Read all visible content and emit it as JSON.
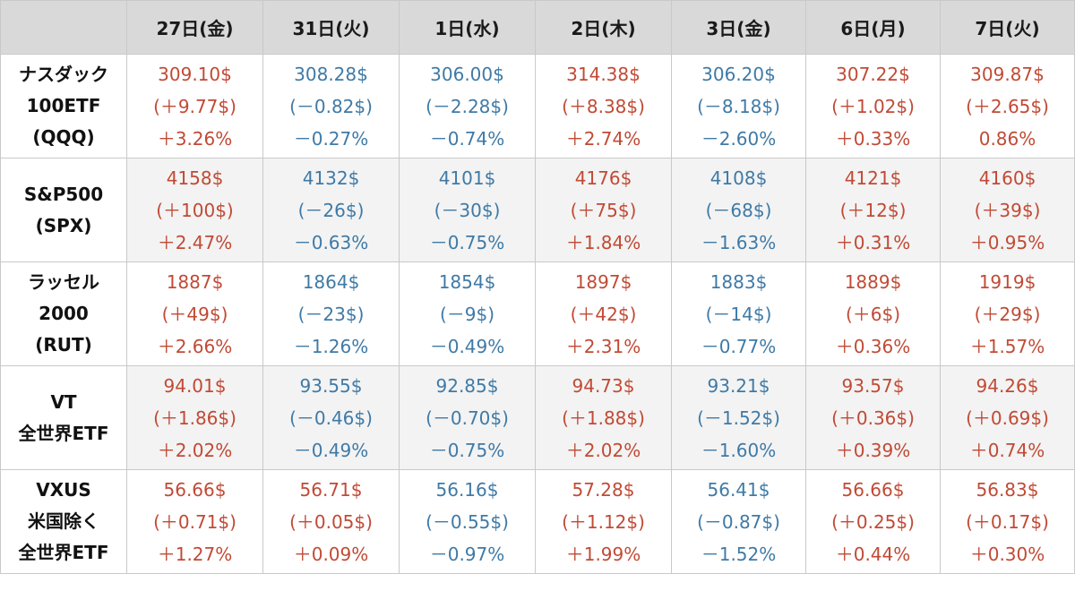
{
  "colors": {
    "up": "#c14a35",
    "down": "#3f7aa6",
    "header_bg": "#d9d9d9",
    "alt_row_bg": "#f3f3f3"
  },
  "columns": [
    "27日(金)",
    "31日(火)",
    "1日(水)",
    "2日(木)",
    "3日(金)",
    "6日(月)",
    "7日(火)"
  ],
  "rows": [
    {
      "name_lines": [
        "ナスダック",
        "100ETF",
        "(QQQ)"
      ],
      "cells": [
        {
          "price": "309.10$",
          "change": "(＋9.77$)",
          "pct": "＋3.26%",
          "trend": "up"
        },
        {
          "price": "308.28$",
          "change": "(－0.82$)",
          "pct": "－0.27%",
          "trend": "down"
        },
        {
          "price": "306.00$",
          "change": "(－2.28$)",
          "pct": "－0.74%",
          "trend": "down"
        },
        {
          "price": "314.38$",
          "change": "(＋8.38$)",
          "pct": "＋2.74%",
          "trend": "up"
        },
        {
          "price": "306.20$",
          "change": "(－8.18$)",
          "pct": "－2.60%",
          "trend": "down"
        },
        {
          "price": "307.22$",
          "change": "(＋1.02$)",
          "pct": "＋0.33%",
          "trend": "up"
        },
        {
          "price": "309.87$",
          "change": "(＋2.65$)",
          "pct": "0.86%",
          "trend": "up"
        }
      ]
    },
    {
      "name_lines": [
        "S&P500",
        "(SPX)"
      ],
      "cells": [
        {
          "price": "4158$",
          "change": "(＋100$)",
          "pct": "＋2.47%",
          "trend": "up"
        },
        {
          "price": "4132$",
          "change": "(－26$)",
          "pct": "－0.63%",
          "trend": "down"
        },
        {
          "price": "4101$",
          "change": "(－30$)",
          "pct": "－0.75%",
          "trend": "down"
        },
        {
          "price": "4176$",
          "change": "(＋75$)",
          "pct": "＋1.84%",
          "trend": "up"
        },
        {
          "price": "4108$",
          "change": "(－68$)",
          "pct": "－1.63%",
          "trend": "down"
        },
        {
          "price": "4121$",
          "change": "(＋12$)",
          "pct": "＋0.31%",
          "trend": "up"
        },
        {
          "price": "4160$",
          "change": "(＋39$)",
          "pct": "＋0.95%",
          "trend": "up"
        }
      ]
    },
    {
      "name_lines": [
        "ラッセル",
        "2000",
        "(RUT)"
      ],
      "cells": [
        {
          "price": "1887$",
          "change": "(＋49$)",
          "pct": "＋2.66%",
          "trend": "up"
        },
        {
          "price": "1864$",
          "change": "(－23$)",
          "pct": "－1.26%",
          "trend": "down"
        },
        {
          "price": "1854$",
          "change": "(－9$)",
          "pct": "－0.49%",
          "trend": "down"
        },
        {
          "price": "1897$",
          "change": "(＋42$)",
          "pct": "＋2.31%",
          "trend": "up"
        },
        {
          "price": "1883$",
          "change": "(－14$)",
          "pct": "－0.77%",
          "trend": "down"
        },
        {
          "price": "1889$",
          "change": "(＋6$)",
          "pct": "＋0.36%",
          "trend": "up"
        },
        {
          "price": "1919$",
          "change": "(＋29$)",
          "pct": "＋1.57%",
          "trend": "up"
        }
      ]
    },
    {
      "name_lines": [
        "VT",
        "全世界ETF"
      ],
      "cells": [
        {
          "price": "94.01$",
          "change": "(＋1.86$)",
          "pct": "＋2.02%",
          "trend": "up"
        },
        {
          "price": "93.55$",
          "change": "(－0.46$)",
          "pct": "－0.49%",
          "trend": "down"
        },
        {
          "price": "92.85$",
          "change": "(－0.70$)",
          "pct": "－0.75%",
          "trend": "down"
        },
        {
          "price": "94.73$",
          "change": "(＋1.88$)",
          "pct": "＋2.02%",
          "trend": "up"
        },
        {
          "price": "93.21$",
          "change": "(－1.52$)",
          "pct": "－1.60%",
          "trend": "down"
        },
        {
          "price": "93.57$",
          "change": "(＋0.36$)",
          "pct": "＋0.39%",
          "trend": "up"
        },
        {
          "price": "94.26$",
          "change": "(＋0.69$)",
          "pct": "＋0.74%",
          "trend": "up"
        }
      ]
    },
    {
      "name_lines": [
        "VXUS",
        "米国除く",
        "全世界ETF"
      ],
      "cells": [
        {
          "price": "56.66$",
          "change": "(＋0.71$)",
          "pct": "＋1.27%",
          "trend": "up"
        },
        {
          "price": "56.71$",
          "change": "(＋0.05$)",
          "pct": "＋0.09%",
          "trend": "up"
        },
        {
          "price": "56.16$",
          "change": "(－0.55$)",
          "pct": "－0.97%",
          "trend": "down"
        },
        {
          "price": "57.28$",
          "change": "(＋1.12$)",
          "pct": "＋1.99%",
          "trend": "up"
        },
        {
          "price": "56.41$",
          "change": "(－0.87$)",
          "pct": "－1.52%",
          "trend": "down"
        },
        {
          "price": "56.66$",
          "change": "(＋0.25$)",
          "pct": "＋0.44%",
          "trend": "up"
        },
        {
          "price": "56.83$",
          "change": "(＋0.17$)",
          "pct": "＋0.30%",
          "trend": "up"
        }
      ]
    }
  ]
}
